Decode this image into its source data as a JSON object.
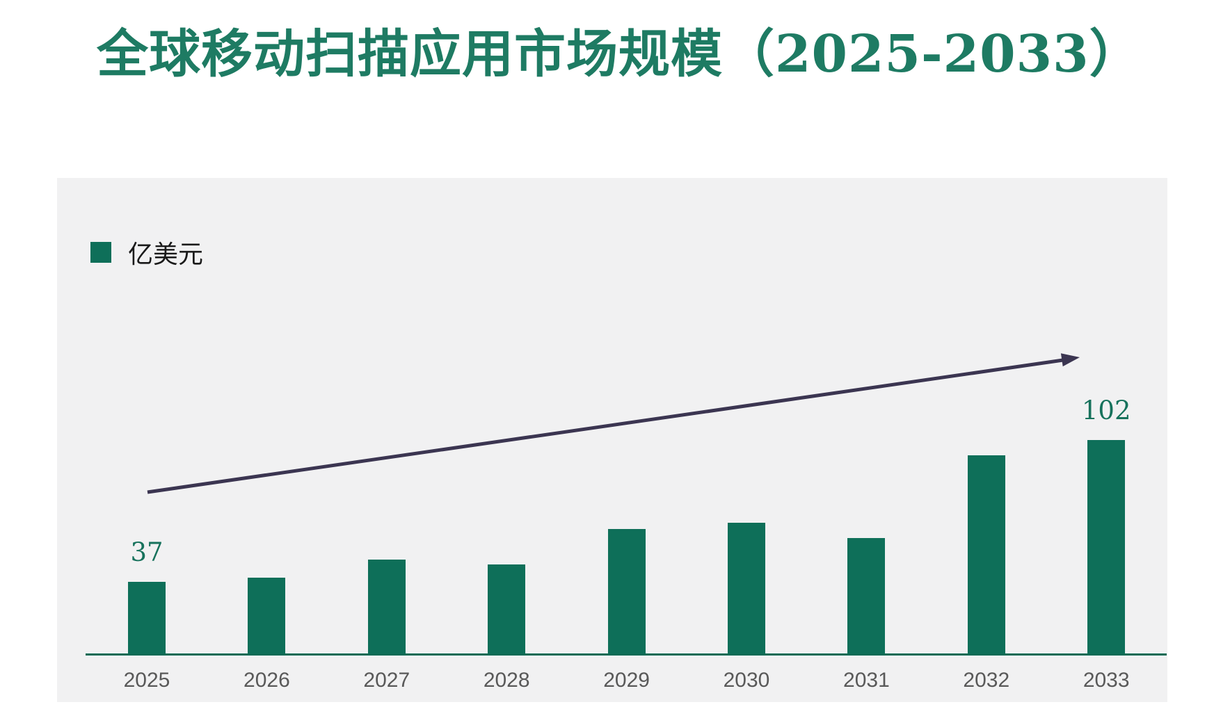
{
  "title": "全球移动扫描应用市场规模（2025-2033）",
  "legend": {
    "label": "亿美元"
  },
  "colors": {
    "page_bg": "#FFFFFF",
    "panel_bg": "#F1F1F2",
    "title": "#1E7B63",
    "bar": "#0E6F59",
    "value_label": "#17725C",
    "axis_line": "#0B6B55",
    "arrow": "#3B3551",
    "tick_label": "#595959",
    "legend_text": "#1A1A1A"
  },
  "chart_data": {
    "type": "bar",
    "title": "全球移动扫描应用市场规模（2025-2033）",
    "unit": "亿美元",
    "legend": [
      "亿美元"
    ],
    "legend_position": "top-left",
    "categories": [
      "2025",
      "2026",
      "2027",
      "2028",
      "2029",
      "2030",
      "2031",
      "2032",
      "2033"
    ],
    "values": [
      37,
      39,
      47,
      45,
      61,
      64,
      57,
      95,
      102
    ],
    "data_labels": {
      "2025": "37",
      "2033": "102"
    },
    "xlabel": "",
    "ylabel": "",
    "y_axis_visible": false,
    "grid": false,
    "annotations": [
      {
        "type": "arrow",
        "meaning": "upward-trend",
        "from_category": "2025",
        "to_category": "2033"
      }
    ]
  }
}
